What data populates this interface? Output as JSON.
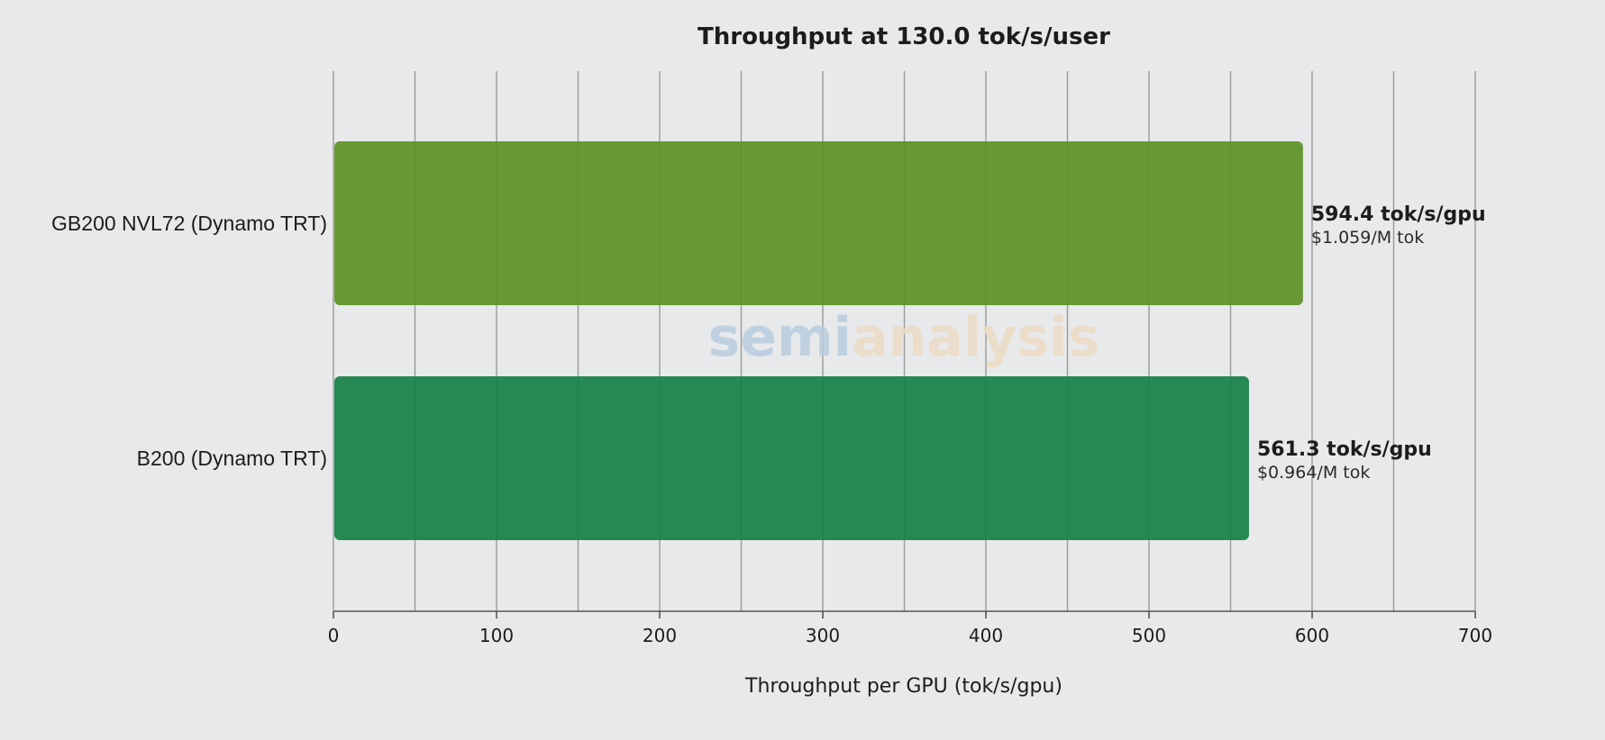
{
  "chart_data": {
    "type": "bar",
    "orientation": "horizontal",
    "title": "Throughput at 130.0 tok/s/user",
    "xlabel": "Throughput per GPU (tok/s/gpu)",
    "ylabel": "",
    "xlim": [
      0,
      700
    ],
    "x_ticks": [
      0,
      100,
      200,
      300,
      400,
      500,
      600,
      700
    ],
    "x_tick_labels": [
      "0",
      "100",
      "200",
      "300",
      "400",
      "500",
      "600",
      "700"
    ],
    "x_minor_gridlines": [
      50,
      150,
      250,
      350,
      450,
      550,
      650
    ],
    "grid": "vertical",
    "categories": [
      "GB200 NVL72 (Dynamo TRT)",
      "B200 (Dynamo TRT)"
    ],
    "values": [
      594.4,
      561.3
    ],
    "colors": [
      "#5e9126",
      "#178047"
    ],
    "value_labels": [
      "594.4 tok/s/gpu",
      "561.3 tok/s/gpu"
    ],
    "cost_labels": [
      "$1.059/M tok",
      "$0.964/M tok"
    ]
  },
  "watermark": {
    "text_part1": "semi",
    "text_part2": "analysis",
    "color_part1": "#b8cde0",
    "color_part2": "#ecdcc4"
  },
  "style": {
    "background": "#e8e9eb",
    "grid_color": "#9a9a9a",
    "axis_color": "#555555"
  }
}
